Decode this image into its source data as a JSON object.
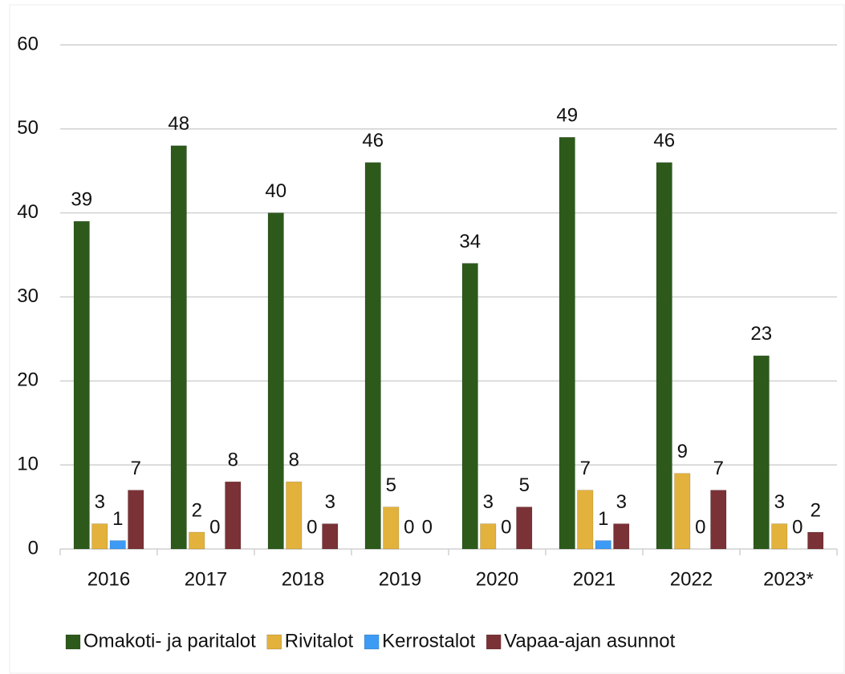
{
  "chart_data": {
    "type": "bar",
    "categories": [
      "2016",
      "2017",
      "2018",
      "2019",
      "2020",
      "2021",
      "2022",
      "2023*"
    ],
    "series": [
      {
        "name": "Omakoti- ja paritalot",
        "color": "#2d5a1b",
        "values": [
          39,
          48,
          40,
          46,
          34,
          49,
          46,
          23
        ]
      },
      {
        "name": "Rivitalot",
        "color": "#e3b23c",
        "values": [
          3,
          2,
          8,
          5,
          3,
          7,
          9,
          3
        ]
      },
      {
        "name": "Kerrostalot",
        "color": "#3d9bf5",
        "values": [
          1,
          0,
          0,
          0,
          0,
          1,
          0,
          0
        ]
      },
      {
        "name": "Vapaa-ajan asunnot",
        "color": "#7a3236",
        "values": [
          7,
          8,
          3,
          0,
          5,
          3,
          7,
          2
        ]
      }
    ],
    "ylim": [
      0,
      60
    ],
    "yticks": [
      0,
      10,
      20,
      30,
      40,
      50,
      60
    ],
    "grid": true,
    "legend": "bottom"
  }
}
